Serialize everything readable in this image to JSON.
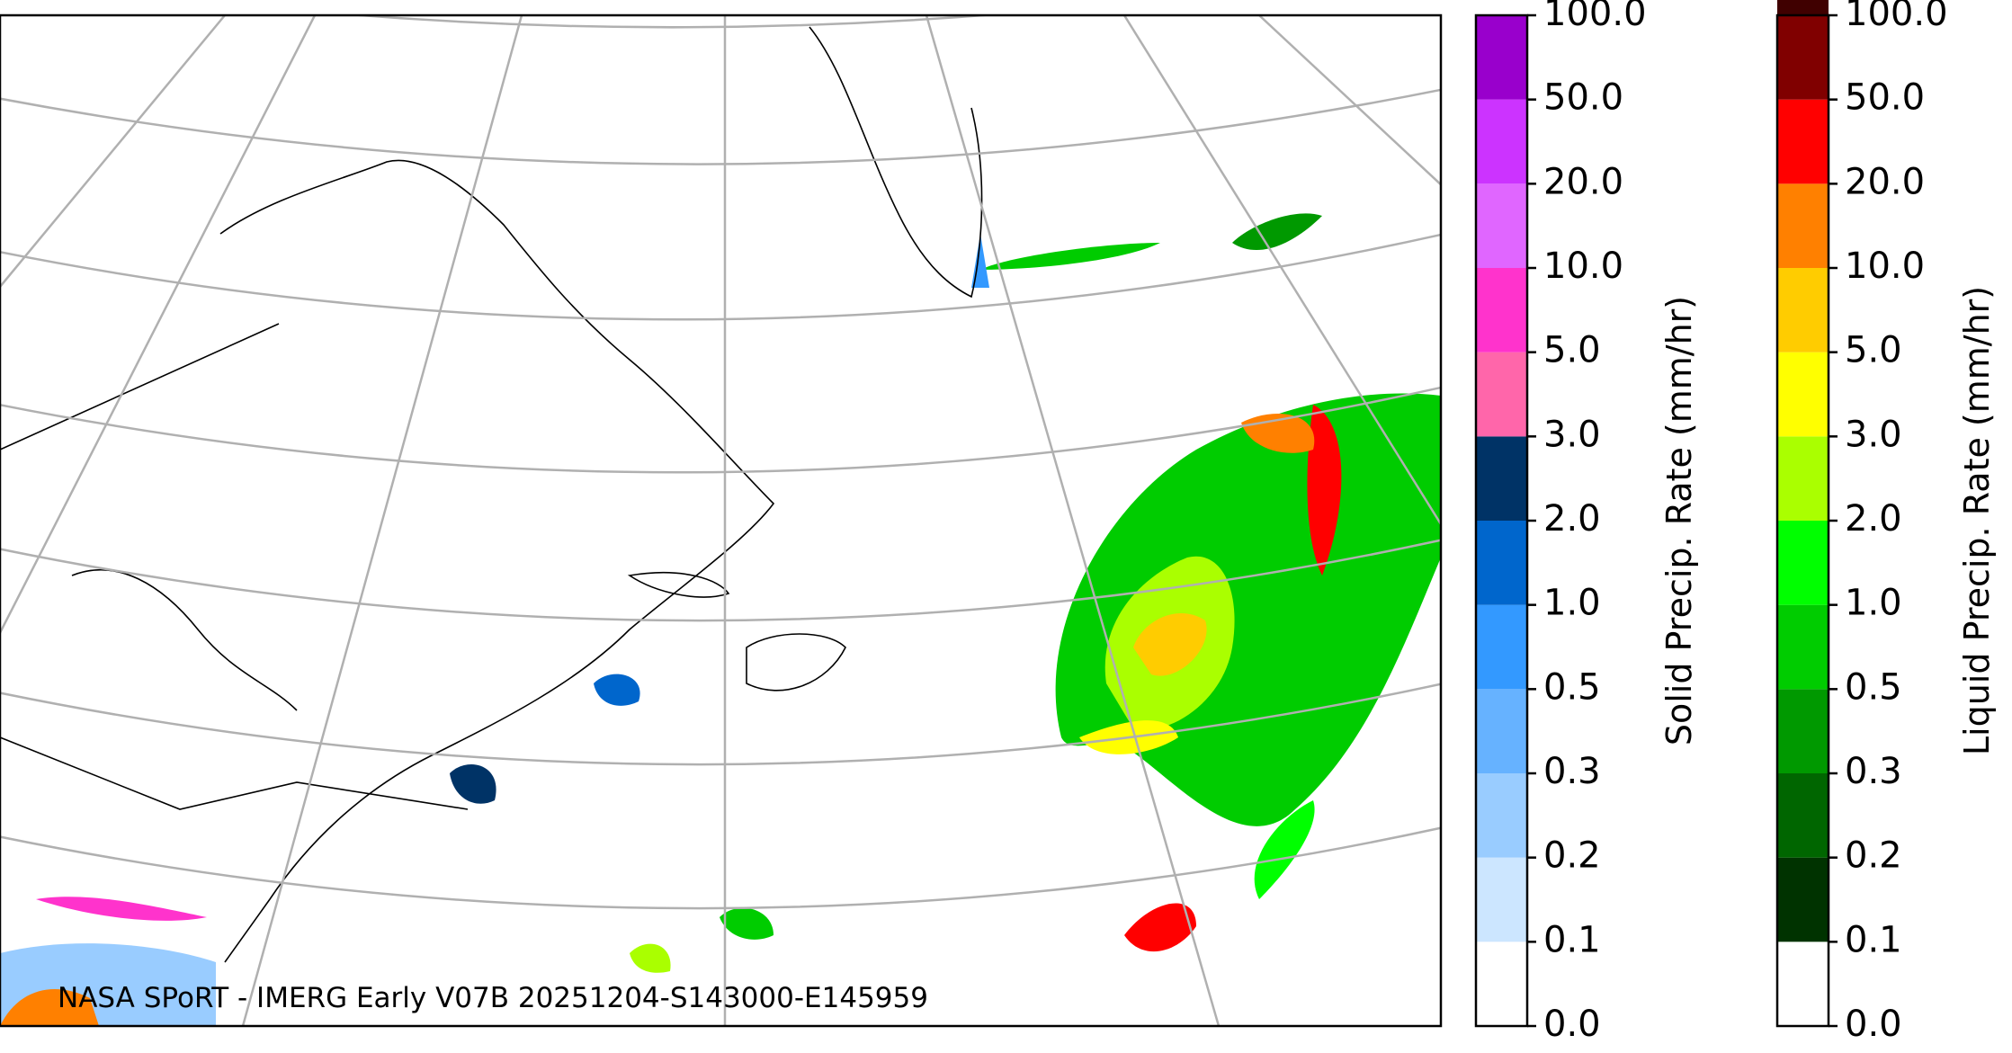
{
  "map": {
    "annotation": "NASA SPoRT - IMERG Early V07B 20251204-S143000-E145959"
  },
  "colorbars": [
    {
      "label": "Solid Precip. Rate (mm/hr)",
      "ticks": [
        {
          "value": 0,
          "label": "0.0"
        },
        {
          "value": 0.1,
          "label": "0.1"
        },
        {
          "value": 0.2,
          "label": "0.2"
        },
        {
          "value": 0.3,
          "label": "0.3"
        },
        {
          "value": 0.5,
          "label": "0.5"
        },
        {
          "value": 1,
          "label": "1.0"
        },
        {
          "value": 2,
          "label": "2.0"
        },
        {
          "value": 3,
          "label": "3.0"
        },
        {
          "value": 5,
          "label": "5.0"
        },
        {
          "value": 10,
          "label": "10.0"
        },
        {
          "value": 20,
          "label": "20.0"
        },
        {
          "value": 50,
          "label": "50.0"
        },
        {
          "value": 100,
          "label": "100.0"
        }
      ],
      "colors": [
        "#ffffff",
        "#cce6ff",
        "#99ccff",
        "#66b2ff",
        "#3399ff",
        "#0066cc",
        "#003366",
        "#ff66aa",
        "#ff33cc",
        "#e066ff",
        "#cc33ff",
        "#9900cc"
      ]
    },
    {
      "label": "Liquid Precip. Rate (mm/hr)",
      "ticks": [
        {
          "value": 0,
          "label": "0.0"
        },
        {
          "value": 0.1,
          "label": "0.1"
        },
        {
          "value": 0.2,
          "label": "0.2"
        },
        {
          "value": 0.3,
          "label": "0.3"
        },
        {
          "value": 0.5,
          "label": "0.5"
        },
        {
          "value": 1,
          "label": "1.0"
        },
        {
          "value": 2,
          "label": "2.0"
        },
        {
          "value": 3,
          "label": "3.0"
        },
        {
          "value": 5,
          "label": "5.0"
        },
        {
          "value": 10,
          "label": "10.0"
        },
        {
          "value": 20,
          "label": "20.0"
        },
        {
          "value": 50,
          "label": "50.0"
        },
        {
          "value": 100,
          "label": "100.0"
        }
      ],
      "colors": [
        "#ffffff",
        "#003300",
        "#006600",
        "#009900",
        "#00cc00",
        "#00ff00",
        "#aaff00",
        "#ffff00",
        "#ffcc00",
        "#ff8000",
        "#ff0000",
        "#800000",
        "#400000"
      ]
    }
  ]
}
